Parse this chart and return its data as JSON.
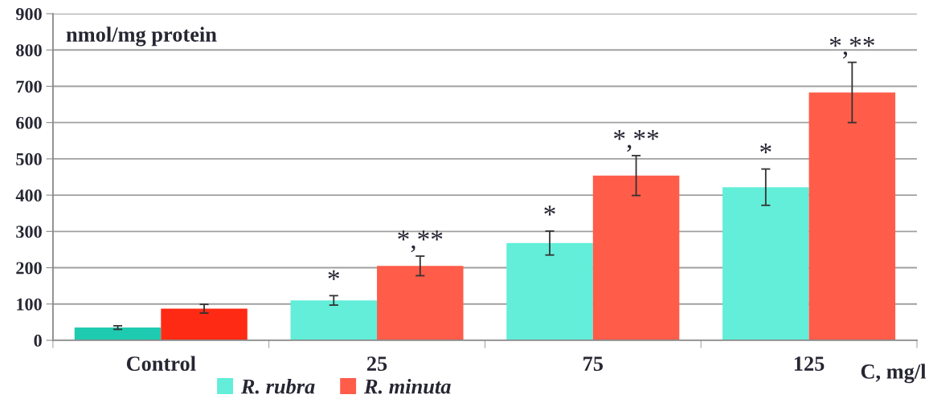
{
  "chart_data": {
    "type": "bar",
    "ylabel": "nmol/mg protein",
    "xlabel": "C, mg/l",
    "categories": [
      "Control",
      "25",
      "75",
      "125"
    ],
    "series": [
      {
        "name": "R. rubra",
        "color": "#62eed9",
        "colors": [
          "#1ecbb0",
          "#62eed9",
          "#62eed9",
          "#62eed9"
        ],
        "values": [
          35,
          110,
          268,
          422
        ],
        "errors": [
          5,
          13,
          33,
          50
        ]
      },
      {
        "name": "R. minuta",
        "color": "#ff5c4a",
        "colors": [
          "#ff2a14",
          "#ff5c4a",
          "#ff5c4a",
          "#ff5c4a"
        ],
        "values": [
          87,
          205,
          454,
          683
        ],
        "errors": [
          12,
          27,
          55,
          83
        ]
      }
    ],
    "annotations": [
      {
        "text": "*",
        "x": "25",
        "y": 110
      },
      {
        "text": "*,**",
        "x": "25",
        "y": 205
      },
      {
        "text": "*",
        "x": "75",
        "y": 268
      },
      {
        "text": "*,**",
        "x": "75",
        "y": 454
      },
      {
        "text": "*",
        "x": "125",
        "y": 422
      },
      {
        "text": "*,**",
        "x": "125",
        "y": 683
      }
    ],
    "ylim": [
      0,
      900
    ],
    "yticks": [
      0,
      100,
      200,
      300,
      400,
      500,
      600,
      700,
      800,
      900
    ],
    "grid": "y",
    "legend": "bottom"
  }
}
